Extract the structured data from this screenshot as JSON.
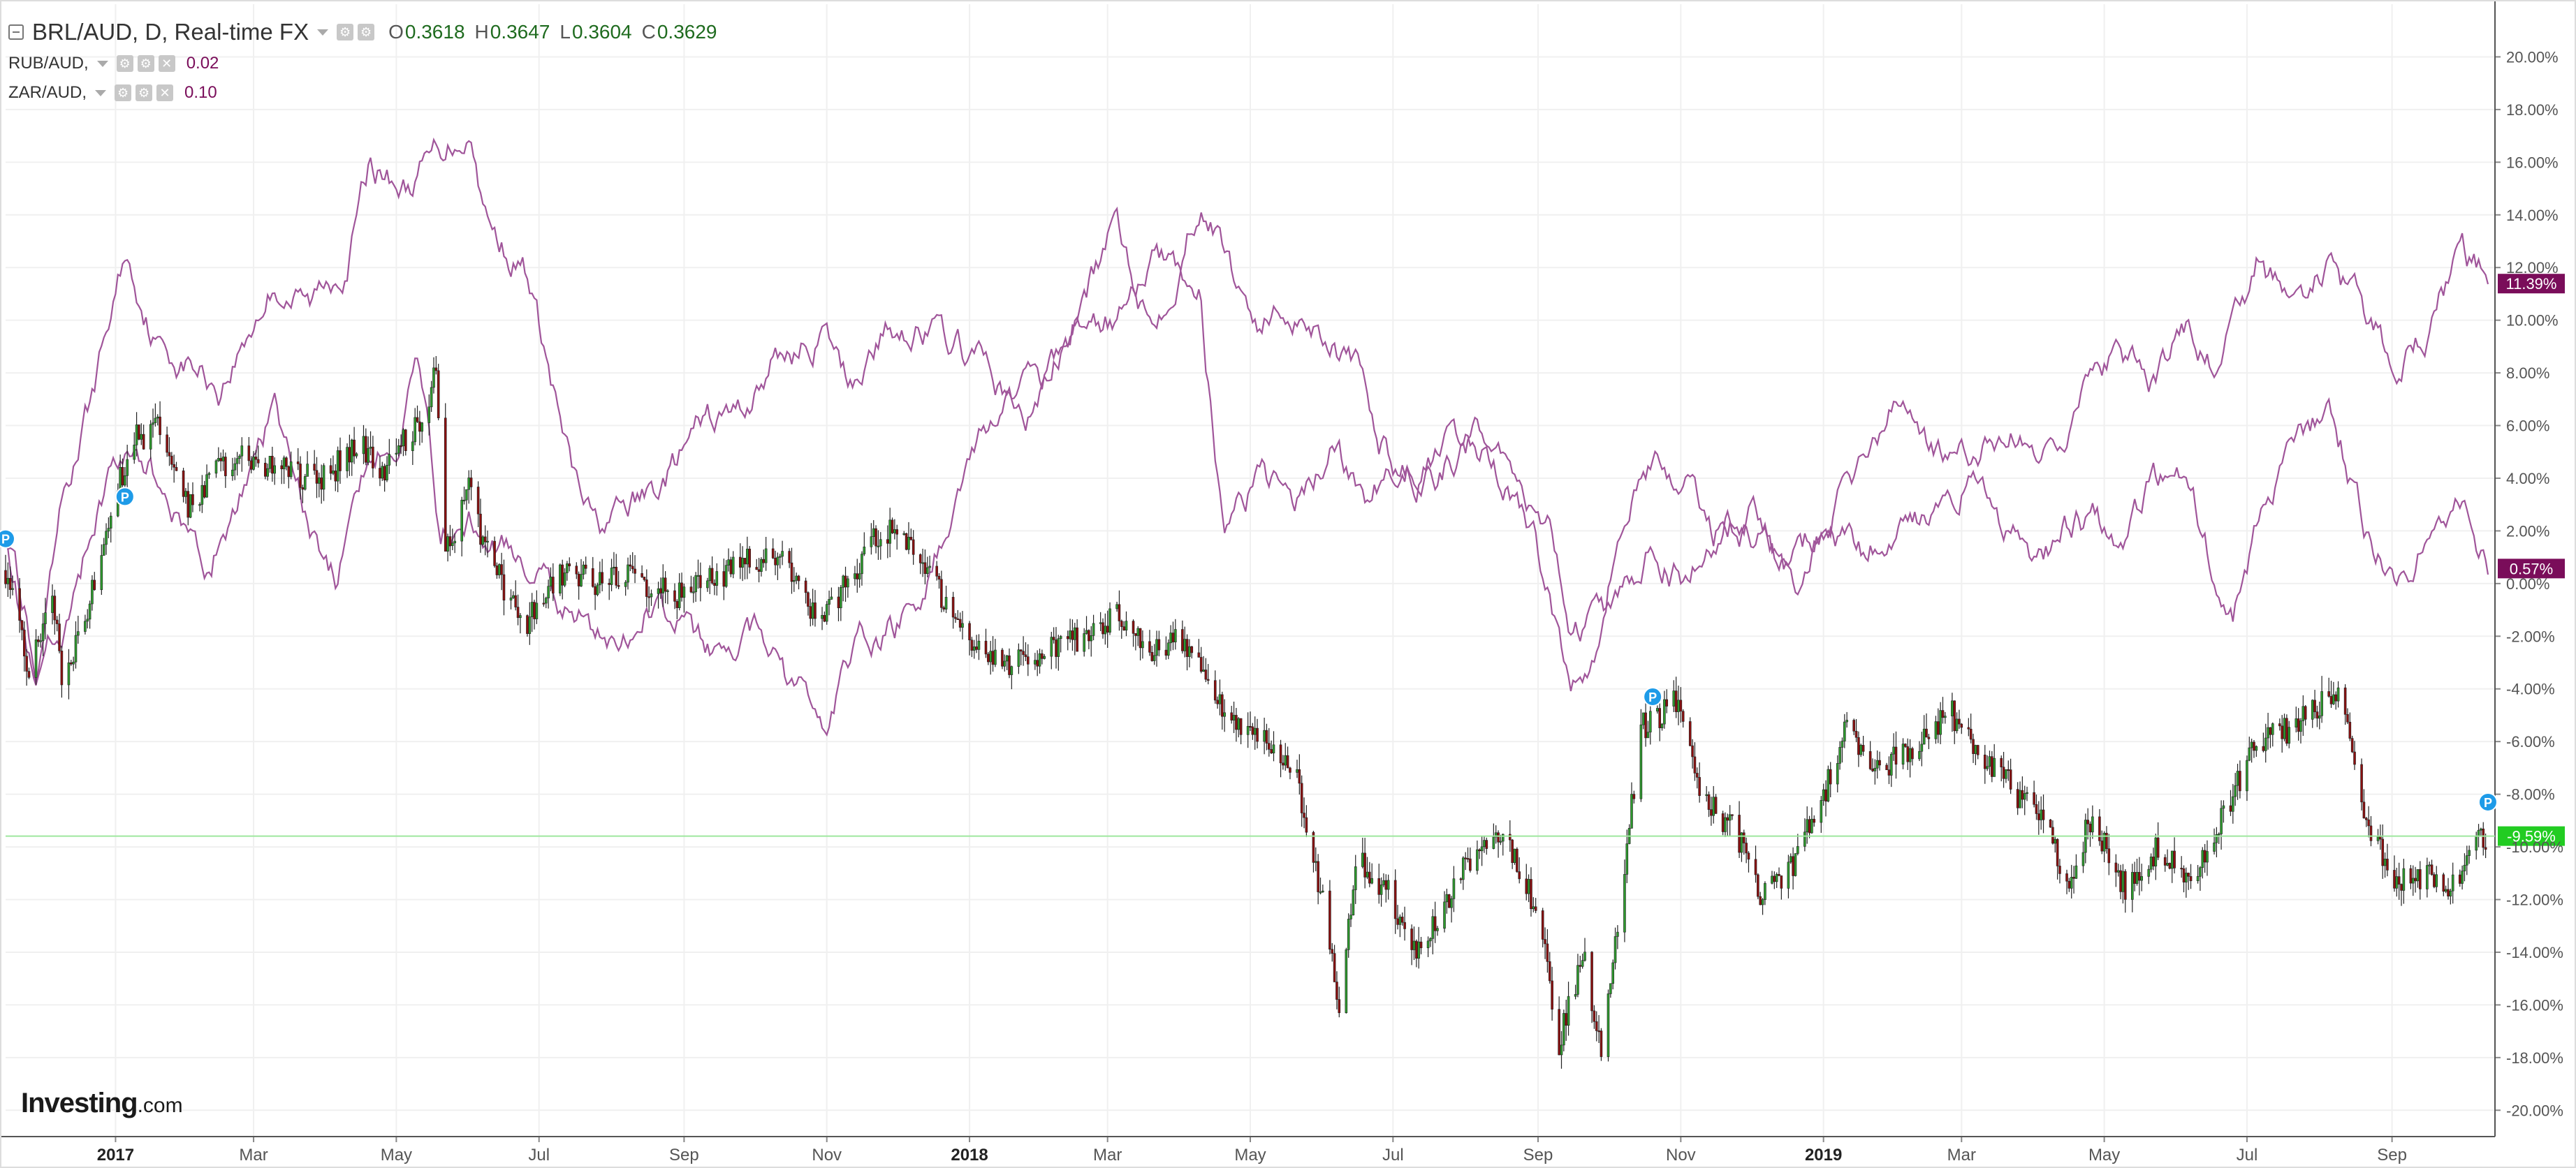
{
  "legend": {
    "main_symbol": "BRL/AUD, D, Real-time FX",
    "ohlc": [
      {
        "key": "O",
        "value": "0.3618"
      },
      {
        "key": "H",
        "value": "0.3647"
      },
      {
        "key": "L",
        "value": "0.3604"
      },
      {
        "key": "C",
        "value": "0.3629"
      }
    ],
    "series": [
      {
        "name": "RUB/AUD,",
        "value": "0.02"
      },
      {
        "name": "ZAR/AUD,",
        "value": "0.10"
      }
    ]
  },
  "brand": {
    "name": "Investing",
    "domain": ".com"
  },
  "colors": {
    "up": "#2e9a2e",
    "down": "#8b1010",
    "wick": "#222222",
    "compare_line": "#a0559a",
    "grid": "#f0f0f0",
    "axis_text": "#555555",
    "last_price_line": "#9ee89e",
    "last_price_badge": "#22cc22",
    "compare_badge": "#7a0d5a",
    "pin": "#1e9be8"
  },
  "chart_data": {
    "type": "candlestick",
    "x_range": [
      "2016-11-15",
      "2019-10-15"
    ],
    "y_axis": {
      "unit": "%",
      "range": [
        -21,
        22
      ],
      "side": "right"
    },
    "y_ticks": [
      "20.00%",
      "18.00%",
      "16.00%",
      "14.00%",
      "12.00%",
      "10.00%",
      "8.00%",
      "6.00%",
      "4.00%",
      "2.00%",
      "0.00%",
      "-2.00%",
      "-4.00%",
      "-6.00%",
      "-8.00%",
      "-10.00%",
      "-12.00%",
      "-14.00%",
      "-16.00%",
      "-18.00%",
      "-20.00%"
    ],
    "x_ticks": [
      {
        "label": "2017",
        "date": "2017-01-01",
        "bold": true
      },
      {
        "label": "Mar",
        "date": "2017-03-01",
        "bold": false
      },
      {
        "label": "May",
        "date": "2017-05-01",
        "bold": false
      },
      {
        "label": "Jul",
        "date": "2017-07-01",
        "bold": false
      },
      {
        "label": "Sep",
        "date": "2017-09-01",
        "bold": false
      },
      {
        "label": "Nov",
        "date": "2017-11-01",
        "bold": false
      },
      {
        "label": "2018",
        "date": "2018-01-01",
        "bold": true
      },
      {
        "label": "Mar",
        "date": "2018-03-01",
        "bold": false
      },
      {
        "label": "May",
        "date": "2018-05-01",
        "bold": false
      },
      {
        "label": "Jul",
        "date": "2018-07-01",
        "bold": false
      },
      {
        "label": "Sep",
        "date": "2018-09-01",
        "bold": false
      },
      {
        "label": "Nov",
        "date": "2018-11-01",
        "bold": false
      },
      {
        "label": "2019",
        "date": "2019-01-01",
        "bold": true
      },
      {
        "label": "Mar",
        "date": "2019-03-01",
        "bold": false
      },
      {
        "label": "May",
        "date": "2019-05-01",
        "bold": false
      },
      {
        "label": "Jul",
        "date": "2019-07-01",
        "bold": false
      },
      {
        "label": "Sep",
        "date": "2019-09-01",
        "bold": false
      }
    ],
    "grid": true,
    "main_series": {
      "name": "BRL/AUD",
      "style": "candles",
      "anchors": [
        [
          "2016-11-15",
          0.5
        ],
        [
          "2016-11-25",
          -3.5
        ],
        [
          "2016-12-05",
          -0.5
        ],
        [
          "2016-12-10",
          -4.0
        ],
        [
          "2016-12-20",
          -1.0
        ],
        [
          "2016-12-30",
          3.0
        ],
        [
          "2017-01-10",
          5.5
        ],
        [
          "2017-01-20",
          6.0
        ],
        [
          "2017-02-01",
          2.8
        ],
        [
          "2017-02-15",
          4.5
        ],
        [
          "2017-03-01",
          4.8
        ],
        [
          "2017-03-15",
          4.2
        ],
        [
          "2017-04-01",
          4.0
        ],
        [
          "2017-04-15",
          5.5
        ],
        [
          "2017-04-25",
          4.3
        ],
        [
          "2017-05-10",
          6.0
        ],
        [
          "2017-05-18",
          8.0
        ],
        [
          "2017-05-22",
          1.0
        ],
        [
          "2017-06-01",
          3.5
        ],
        [
          "2017-06-10",
          0.8
        ],
        [
          "2017-06-25",
          -1.5
        ],
        [
          "2017-07-10",
          0.5
        ],
        [
          "2017-07-25",
          0.0
        ],
        [
          "2017-08-10",
          0.2
        ],
        [
          "2017-09-01",
          -0.5
        ],
        [
          "2017-09-20",
          0.5
        ],
        [
          "2017-10-10",
          1.2
        ],
        [
          "2017-10-30",
          -1.5
        ],
        [
          "2017-11-20",
          1.5
        ],
        [
          "2017-12-01",
          2.3
        ],
        [
          "2017-12-15",
          0.5
        ],
        [
          "2018-01-01",
          -2.5
        ],
        [
          "2018-01-20",
          -3.0
        ],
        [
          "2018-02-05",
          -2.5
        ],
        [
          "2018-02-20",
          -2.0
        ],
        [
          "2018-03-05",
          -1.2
        ],
        [
          "2018-03-20",
          -2.5
        ],
        [
          "2018-04-01",
          -2.0
        ],
        [
          "2018-04-20",
          -5.0
        ],
        [
          "2018-05-05",
          -5.5
        ],
        [
          "2018-05-20",
          -7.0
        ],
        [
          "2018-06-01",
          -12.0
        ],
        [
          "2018-06-08",
          -16.0
        ],
        [
          "2018-06-15",
          -10.5
        ],
        [
          "2018-06-28",
          -11.5
        ],
        [
          "2018-07-10",
          -14.0
        ],
        [
          "2018-07-25",
          -12.0
        ],
        [
          "2018-08-08",
          -9.5
        ],
        [
          "2018-08-20",
          -10.0
        ],
        [
          "2018-09-01",
          -12.5
        ],
        [
          "2018-09-10",
          -17.5
        ],
        [
          "2018-09-20",
          -14.0
        ],
        [
          "2018-09-28",
          -17.5
        ],
        [
          "2018-10-05",
          -13.0
        ],
        [
          "2018-10-15",
          -5.5
        ],
        [
          "2018-10-30",
          -4.5
        ],
        [
          "2018-11-10",
          -8.0
        ],
        [
          "2018-11-25",
          -9.5
        ],
        [
          "2018-12-05",
          -12.0
        ],
        [
          "2018-12-20",
          -10.5
        ],
        [
          "2019-01-01",
          -8.0
        ],
        [
          "2019-01-10",
          -5.5
        ],
        [
          "2019-01-25",
          -7.0
        ],
        [
          "2019-02-10",
          -6.0
        ],
        [
          "2019-02-25",
          -5.0
        ],
        [
          "2019-03-10",
          -6.5
        ],
        [
          "2019-03-25",
          -8.0
        ],
        [
          "2019-04-05",
          -9.0
        ],
        [
          "2019-04-15",
          -11.5
        ],
        [
          "2019-04-25",
          -9.0
        ],
        [
          "2019-05-10",
          -11.5
        ],
        [
          "2019-05-25",
          -10.0
        ],
        [
          "2019-06-05",
          -11.5
        ],
        [
          "2019-06-20",
          -9.0
        ],
        [
          "2019-07-05",
          -6.0
        ],
        [
          "2019-07-20",
          -5.5
        ],
        [
          "2019-08-01",
          -4.5
        ],
        [
          "2019-08-10",
          -4.0
        ],
        [
          "2019-08-20",
          -8.5
        ],
        [
          "2019-09-01",
          -11.5
        ],
        [
          "2019-09-15",
          -11.0
        ],
        [
          "2019-09-25",
          -11.8
        ],
        [
          "2019-10-05",
          -10.0
        ],
        [
          "2019-10-12",
          -9.6
        ]
      ],
      "last_value_label": "-9.59%",
      "last_value": -9.59
    },
    "compare_series": [
      {
        "name": "RUB/AUD",
        "anchors": [
          [
            "2016-11-15",
            2.5
          ],
          [
            "2016-11-28",
            -4.5
          ],
          [
            "2016-12-10",
            3.0
          ],
          [
            "2016-12-22",
            7.0
          ],
          [
            "2017-01-05",
            12.5
          ],
          [
            "2017-01-20",
            9.0
          ],
          [
            "2017-02-05",
            8.2
          ],
          [
            "2017-02-15",
            7.5
          ],
          [
            "2017-03-01",
            10.0
          ],
          [
            "2017-03-10",
            11.5
          ],
          [
            "2017-03-25",
            10.5
          ],
          [
            "2017-04-10",
            12.5
          ],
          [
            "2017-04-20",
            16.0
          ],
          [
            "2017-05-05",
            15.0
          ],
          [
            "2017-05-20",
            16.5
          ],
          [
            "2017-06-01",
            17.5
          ],
          [
            "2017-06-10",
            13.5
          ],
          [
            "2017-06-25",
            12.0
          ],
          [
            "2017-07-05",
            8.0
          ],
          [
            "2017-07-15",
            4.0
          ],
          [
            "2017-07-25",
            2.0
          ],
          [
            "2017-08-05",
            2.5
          ],
          [
            "2017-08-20",
            3.5
          ],
          [
            "2017-09-10",
            6.0
          ],
          [
            "2017-09-25",
            6.5
          ],
          [
            "2017-10-10",
            8.5
          ],
          [
            "2017-10-30",
            9.5
          ],
          [
            "2017-11-10",
            7.5
          ],
          [
            "2017-11-25",
            9.5
          ],
          [
            "2017-12-10",
            10.0
          ],
          [
            "2017-12-25",
            9.0
          ],
          [
            "2018-01-10",
            8.0
          ],
          [
            "2018-01-25",
            6.0
          ],
          [
            "2018-02-10",
            9.0
          ],
          [
            "2018-02-25",
            12.0
          ],
          [
            "2018-03-05",
            13.5
          ],
          [
            "2018-03-20",
            10.0
          ],
          [
            "2018-04-01",
            12.5
          ],
          [
            "2018-04-10",
            15.0
          ],
          [
            "2018-04-25",
            11.5
          ],
          [
            "2018-05-05",
            10.0
          ],
          [
            "2018-05-20",
            10.5
          ],
          [
            "2018-06-05",
            9.5
          ],
          [
            "2018-06-15",
            8.0
          ],
          [
            "2018-06-25",
            5.5
          ],
          [
            "2018-07-10",
            4.0
          ],
          [
            "2018-07-25",
            5.0
          ],
          [
            "2018-08-10",
            5.0
          ],
          [
            "2018-08-25",
            3.0
          ],
          [
            "2018-09-05",
            0.0
          ],
          [
            "2018-09-15",
            -4.0
          ],
          [
            "2018-09-25",
            -2.0
          ],
          [
            "2018-10-05",
            2.0
          ],
          [
            "2018-10-20",
            5.0
          ],
          [
            "2018-11-01",
            4.0
          ],
          [
            "2018-11-15",
            2.0
          ],
          [
            "2018-12-01",
            3.0
          ],
          [
            "2018-12-15",
            0.5
          ],
          [
            "2019-01-01",
            2.0
          ],
          [
            "2019-01-20",
            5.0
          ],
          [
            "2019-02-05",
            7.0
          ],
          [
            "2019-02-20",
            5.0
          ],
          [
            "2019-03-05",
            4.5
          ],
          [
            "2019-03-20",
            6.0
          ],
          [
            "2019-04-05",
            5.0
          ],
          [
            "2019-04-20",
            7.0
          ],
          [
            "2019-05-05",
            8.5
          ],
          [
            "2019-05-20",
            7.5
          ],
          [
            "2019-06-05",
            9.5
          ],
          [
            "2019-06-20",
            8.0
          ],
          [
            "2019-07-05",
            12.0
          ],
          [
            "2019-07-20",
            10.5
          ],
          [
            "2019-08-05",
            12.0
          ],
          [
            "2019-08-20",
            10.0
          ],
          [
            "2019-09-01",
            8.5
          ],
          [
            "2019-09-15",
            9.5
          ],
          [
            "2019-10-01",
            12.5
          ],
          [
            "2019-10-12",
            11.39
          ]
        ],
        "last_value_label": "11.39%",
        "last_value": 11.39
      },
      {
        "name": "ZAR/AUD",
        "anchors": [
          [
            "2016-11-15",
            2.0
          ],
          [
            "2016-11-28",
            -3.0
          ],
          [
            "2016-12-10",
            -1.0
          ],
          [
            "2016-12-25",
            3.0
          ],
          [
            "2017-01-10",
            6.0
          ],
          [
            "2017-01-25",
            3.0
          ],
          [
            "2017-02-10",
            1.0
          ],
          [
            "2017-02-25",
            3.5
          ],
          [
            "2017-03-10",
            6.5
          ],
          [
            "2017-03-25",
            2.0
          ],
          [
            "2017-04-05",
            0.0
          ],
          [
            "2017-04-20",
            5.0
          ],
          [
            "2017-05-01",
            6.0
          ],
          [
            "2017-05-10",
            8.0
          ],
          [
            "2017-05-20",
            1.5
          ],
          [
            "2017-06-01",
            3.0
          ],
          [
            "2017-06-15",
            1.5
          ],
          [
            "2017-06-30",
            0.5
          ],
          [
            "2017-07-15",
            -1.0
          ],
          [
            "2017-08-01",
            -2.5
          ],
          [
            "2017-08-15",
            -1.0
          ],
          [
            "2017-09-01",
            -1.5
          ],
          [
            "2017-09-15",
            -3.0
          ],
          [
            "2017-10-01",
            -2.0
          ],
          [
            "2017-10-15",
            -4.0
          ],
          [
            "2017-11-01",
            -5.0
          ],
          [
            "2017-11-15",
            -2.0
          ],
          [
            "2017-12-01",
            -1.5
          ],
          [
            "2017-12-15",
            0.5
          ],
          [
            "2018-01-01",
            5.5
          ],
          [
            "2018-01-15",
            6.5
          ],
          [
            "2018-02-01",
            7.5
          ],
          [
            "2018-02-15",
            9.5
          ],
          [
            "2018-03-05",
            10.0
          ],
          [
            "2018-03-20",
            12.0
          ],
          [
            "2018-04-01",
            11.5
          ],
          [
            "2018-04-10",
            11.0
          ],
          [
            "2018-04-20",
            1.0
          ],
          [
            "2018-05-05",
            4.0
          ],
          [
            "2018-05-20",
            3.0
          ],
          [
            "2018-06-05",
            5.0
          ],
          [
            "2018-06-20",
            3.0
          ],
          [
            "2018-07-05",
            5.0
          ],
          [
            "2018-07-20",
            4.5
          ],
          [
            "2018-08-05",
            5.5
          ],
          [
            "2018-08-20",
            4.0
          ],
          [
            "2018-09-05",
            2.0
          ],
          [
            "2018-09-15",
            -2.0
          ],
          [
            "2018-10-01",
            -1.0
          ],
          [
            "2018-10-20",
            1.5
          ],
          [
            "2018-11-05",
            0.0
          ],
          [
            "2018-11-20",
            2.5
          ],
          [
            "2018-12-05",
            2.0
          ],
          [
            "2018-12-20",
            0.0
          ],
          [
            "2019-01-05",
            2.0
          ],
          [
            "2019-01-20",
            1.0
          ],
          [
            "2019-02-05",
            3.0
          ],
          [
            "2019-02-20",
            2.5
          ],
          [
            "2019-03-05",
            4.5
          ],
          [
            "2019-03-20",
            2.0
          ],
          [
            "2019-04-05",
            1.0
          ],
          [
            "2019-04-20",
            2.5
          ],
          [
            "2019-05-05",
            2.0
          ],
          [
            "2019-05-20",
            3.5
          ],
          [
            "2019-06-01",
            4.5
          ],
          [
            "2019-06-15",
            1.0
          ],
          [
            "2019-06-25",
            -0.5
          ],
          [
            "2019-07-10",
            3.5
          ],
          [
            "2019-07-25",
            5.0
          ],
          [
            "2019-08-05",
            6.5
          ],
          [
            "2019-08-15",
            4.0
          ],
          [
            "2019-08-25",
            1.0
          ],
          [
            "2019-09-05",
            0.5
          ],
          [
            "2019-09-20",
            2.5
          ],
          [
            "2019-10-01",
            3.0
          ],
          [
            "2019-10-12",
            0.57
          ]
        ],
        "last_value_label": "0.57%",
        "last_value": 0.57
      }
    ],
    "pins": [
      {
        "label": "P",
        "date": "2016-11-15",
        "value": 1.7
      },
      {
        "label": "P",
        "date": "2017-01-05",
        "value": 3.3
      },
      {
        "label": "P",
        "date": "2018-10-20",
        "value": -4.3
      },
      {
        "label": "P",
        "date": "2019-10-12",
        "value": -8.3
      }
    ]
  }
}
